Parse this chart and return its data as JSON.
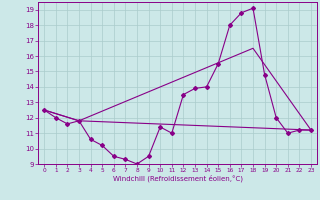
{
  "xlabel": "Windchill (Refroidissement éolien,°C)",
  "bg_color": "#cce8e8",
  "line_color": "#880088",
  "grid_color": "#aacccc",
  "ylim": [
    9,
    19.5
  ],
  "xlim": [
    -0.5,
    23.5
  ],
  "yticks": [
    9,
    10,
    11,
    12,
    13,
    14,
    15,
    16,
    17,
    18,
    19
  ],
  "xticks": [
    0,
    1,
    2,
    3,
    4,
    5,
    6,
    7,
    8,
    9,
    10,
    11,
    12,
    13,
    14,
    15,
    16,
    17,
    18,
    19,
    20,
    21,
    22,
    23
  ],
  "line1_x": [
    0,
    1,
    2,
    3,
    4,
    5,
    6,
    7,
    8,
    9,
    10,
    11,
    12,
    13,
    14,
    15,
    16,
    17,
    18,
    19,
    20,
    21,
    22,
    23
  ],
  "line1_y": [
    12.5,
    12.0,
    11.6,
    11.8,
    10.6,
    10.2,
    9.5,
    9.3,
    9.0,
    9.5,
    11.4,
    11.0,
    13.5,
    13.9,
    14.0,
    15.5,
    18.0,
    18.8,
    19.1,
    14.8,
    12.0,
    11.0,
    11.2,
    11.2
  ],
  "line2_x": [
    0,
    3,
    23
  ],
  "line2_y": [
    12.5,
    11.8,
    11.2
  ],
  "line3_x": [
    0,
    3,
    18,
    23
  ],
  "line3_y": [
    12.5,
    11.8,
    16.5,
    11.2
  ]
}
